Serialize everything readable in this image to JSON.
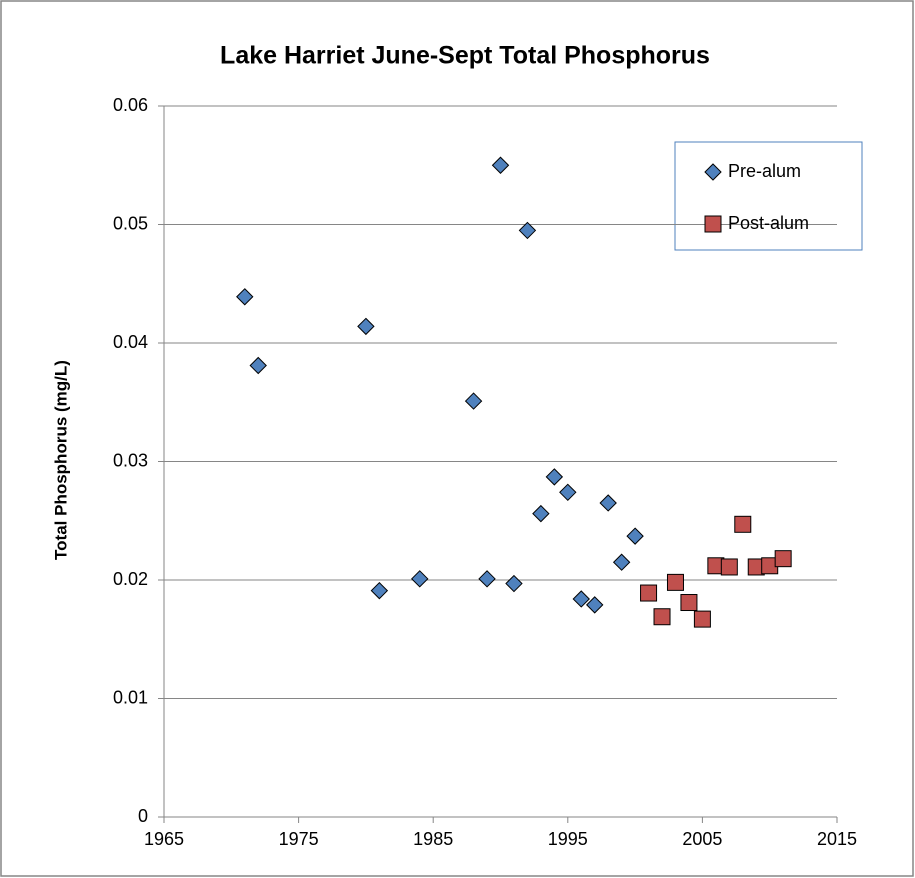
{
  "chart_data": {
    "type": "scatter",
    "title": "Lake Harriet June-Sept Total Phosphorus",
    "y_label": "Total Phosphorus (mg/L)",
    "xlim": [
      1965,
      2015
    ],
    "xticks": [
      1965,
      1975,
      1985,
      1995,
      2005,
      2015
    ],
    "ylim": [
      0,
      0.06
    ],
    "yticks": [
      0,
      0.01,
      0.02,
      0.03,
      0.04,
      0.05,
      0.06
    ],
    "grid": true,
    "legend": "upper right",
    "series": [
      {
        "name": "Pre-alum",
        "color": "#4f81bd",
        "marker": "diamond",
        "x": [
          1971,
          1972,
          1980,
          1981,
          1984,
          1988,
          1989,
          1990,
          1991,
          1992,
          1993,
          1994,
          1995,
          1996,
          1997,
          1998,
          1999,
          2000
        ],
        "values": [
          0.0439,
          0.0381,
          0.0414,
          0.0191,
          0.0201,
          0.0351,
          0.0201,
          0.055,
          0.0197,
          0.0495,
          0.0256,
          0.0287,
          0.0274,
          0.0184,
          0.0179,
          0.0265,
          0.0215,
          0.0237
        ]
      },
      {
        "name": "Post-alum",
        "color": "#c0504d",
        "marker": "square",
        "x": [
          2001,
          2002,
          2003,
          2004,
          2005,
          2006,
          2007,
          2008,
          2009,
          2010,
          2011
        ],
        "values": [
          0.0189,
          0.0169,
          0.0198,
          0.0181,
          0.0167,
          0.0212,
          0.0211,
          0.0247,
          0.0211,
          0.0212,
          0.0218
        ]
      }
    ]
  }
}
